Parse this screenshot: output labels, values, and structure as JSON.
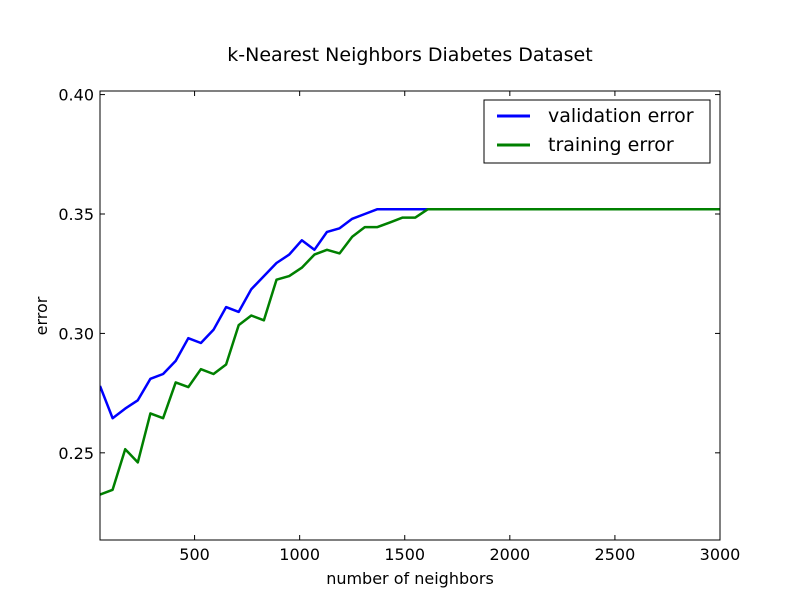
{
  "chart_data": {
    "type": "line",
    "title": "k-Nearest Neighbors Diabetes Dataset",
    "xlabel": "number of neighbors",
    "ylabel": "error",
    "xlim": [
      50,
      3000
    ],
    "ylim": [
      0.2135,
      0.4015
    ],
    "xticks": [
      500,
      1000,
      1500,
      2000,
      2500,
      3000
    ],
    "xtick_labels": [
      "500",
      "1000",
      "1500",
      "2000",
      "2500",
      "3000"
    ],
    "yticks": [
      0.25,
      0.3,
      0.35,
      0.4
    ],
    "ytick_labels": [
      "0.25",
      "0.30",
      "0.35",
      "0.40"
    ],
    "grid": false,
    "legend_position": "top-right",
    "series": [
      {
        "name": "validation error",
        "color": "#0000ff",
        "x": [
          50,
          110,
          170,
          230,
          290,
          350,
          410,
          470,
          530,
          590,
          650,
          710,
          770,
          830,
          890,
          950,
          1010,
          1070,
          1130,
          1190,
          1250,
          1310,
          1370,
          1430,
          1490,
          1550,
          1610,
          1670,
          3000
        ],
        "y": [
          0.278,
          0.2645,
          0.2685,
          0.272,
          0.281,
          0.283,
          0.2885,
          0.298,
          0.296,
          0.3015,
          0.311,
          0.309,
          0.3185,
          0.324,
          0.3295,
          0.333,
          0.339,
          0.335,
          0.3425,
          0.344,
          0.348,
          0.35,
          0.352,
          0.352,
          0.352,
          0.352,
          0.352,
          0.352,
          0.352
        ]
      },
      {
        "name": "training error",
        "color": "#008000",
        "x": [
          50,
          110,
          170,
          230,
          290,
          350,
          410,
          470,
          530,
          590,
          650,
          710,
          770,
          830,
          890,
          950,
          1010,
          1070,
          1130,
          1190,
          1250,
          1310,
          1370,
          1430,
          1490,
          1550,
          1610,
          1670,
          3000
        ],
        "y": [
          0.2325,
          0.2345,
          0.2515,
          0.246,
          0.2665,
          0.2645,
          0.2795,
          0.2775,
          0.285,
          0.283,
          0.287,
          0.3035,
          0.3075,
          0.3055,
          0.3225,
          0.324,
          0.3275,
          0.333,
          0.335,
          0.3335,
          0.3405,
          0.3445,
          0.3445,
          0.3465,
          0.3485,
          0.3485,
          0.352,
          0.352,
          0.352
        ]
      }
    ]
  }
}
